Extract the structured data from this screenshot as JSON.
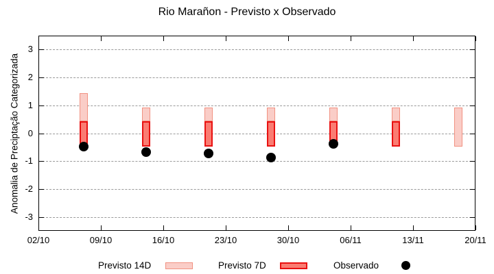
{
  "chart_data": {
    "type": "bar",
    "title": "Rio Marañon - Previsto x Observado",
    "ylabel": "Anomalia de Preciptação Categorizada",
    "xlabel": "",
    "ylim": [
      -3.5,
      3.5
    ],
    "y_ticks": [
      3,
      2,
      1,
      0,
      -1,
      -2,
      -3
    ],
    "x_ticks": [
      {
        "label": "02/10",
        "day": 0
      },
      {
        "label": "09/10",
        "day": 7
      },
      {
        "label": "16/10",
        "day": 14
      },
      {
        "label": "23/10",
        "day": 21
      },
      {
        "label": "30/10",
        "day": 28
      },
      {
        "label": "06/11",
        "day": 35
      },
      {
        "label": "13/11",
        "day": 42
      },
      {
        "label": "20/11",
        "day": 49
      }
    ],
    "x_range_days": 49,
    "grid": "dashed-horizontal",
    "legend_position": "bottom",
    "colors": {
      "previsto_14d_fill": "#FACDC7",
      "previsto_14d_border": "#F19181",
      "previsto_7d_fill": "#FA7C72",
      "previsto_7d_border": "#E91111",
      "observado": "#000000",
      "grid": "#999999",
      "axis": "#000000"
    },
    "series": [
      {
        "name": "Previsto 14D",
        "type": "range-bar",
        "points": [
          {
            "date": "07/10",
            "day": 5,
            "low": 0.45,
            "high": 1.45
          },
          {
            "date": "14/10",
            "day": 12,
            "low": 0.45,
            "high": 0.95
          },
          {
            "date": "21/10",
            "day": 19,
            "low": 0.45,
            "high": 0.95
          },
          {
            "date": "28/10",
            "day": 26,
            "low": 0.45,
            "high": 0.95
          },
          {
            "date": "04/11",
            "day": 33,
            "low": 0.45,
            "high": 0.95
          },
          {
            "date": "11/11",
            "day": 40,
            "low": 0.45,
            "high": 0.95
          },
          {
            "date": "18/11",
            "day": 47,
            "low": -0.45,
            "high": 0.95
          }
        ]
      },
      {
        "name": "Previsto 7D",
        "type": "range-bar",
        "points": [
          {
            "date": "07/10",
            "day": 5,
            "low": -0.45,
            "high": 0.45
          },
          {
            "date": "14/10",
            "day": 12,
            "low": -0.45,
            "high": 0.45
          },
          {
            "date": "21/10",
            "day": 19,
            "low": -0.45,
            "high": 0.45
          },
          {
            "date": "28/10",
            "day": 26,
            "low": -0.45,
            "high": 0.45
          },
          {
            "date": "04/11",
            "day": 33,
            "low": -0.45,
            "high": 0.45
          },
          {
            "date": "11/11",
            "day": 40,
            "low": -0.45,
            "high": 0.45
          }
        ]
      },
      {
        "name": "Observado",
        "type": "scatter",
        "points": [
          {
            "date": "07/10",
            "day": 5,
            "y": -0.45
          },
          {
            "date": "14/10",
            "day": 12,
            "y": -0.65
          },
          {
            "date": "21/10",
            "day": 19,
            "y": -0.7
          },
          {
            "date": "28/10",
            "day": 26,
            "y": -0.85
          },
          {
            "date": "04/11",
            "day": 33,
            "y": -0.35
          }
        ]
      }
    ]
  }
}
